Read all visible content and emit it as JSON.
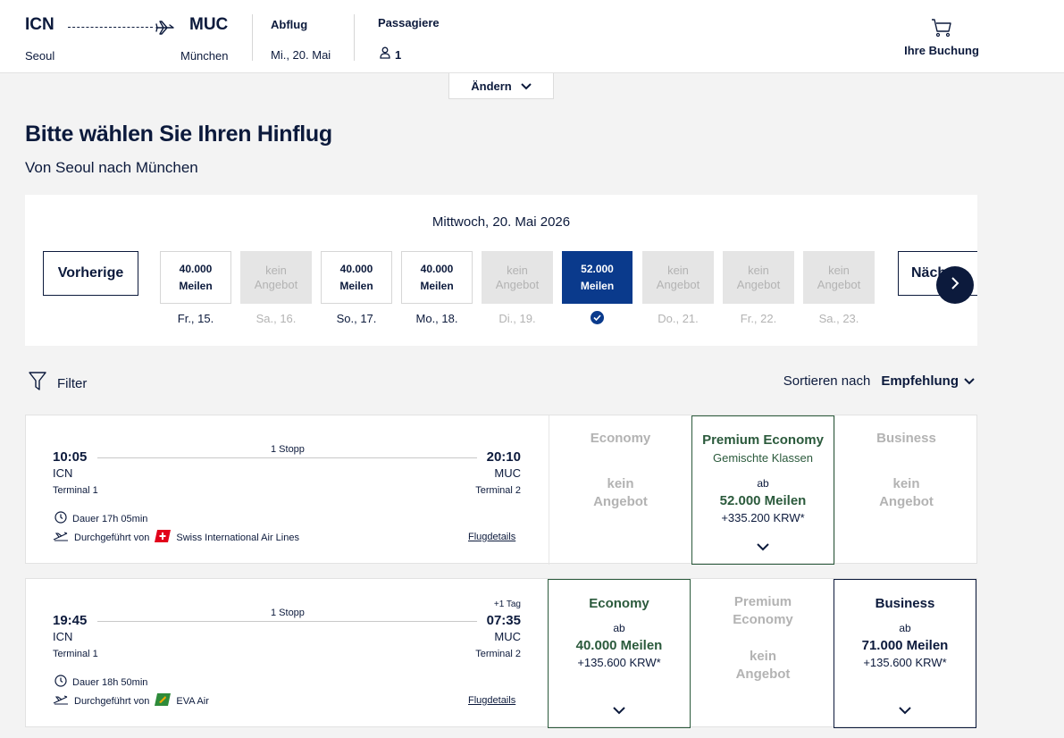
{
  "header": {
    "origin_code": "ICN",
    "origin_city": "Seoul",
    "destination_code": "MUC",
    "destination_city": "München",
    "departure_label": "Abflug",
    "departure_value": "Mi., 20. Mai",
    "passengers_label": "Passagiere",
    "passengers_value": "1",
    "booking_label": "Ihre Buchung"
  },
  "change_button": "Ändern",
  "page_title": "Bitte wählen Sie Ihren Hinflug",
  "page_subtitle": "Von Seoul nach München",
  "date_selector": {
    "current_date": "Mittwoch, 20. Mai 2026",
    "prev_label": "Vorherige",
    "next_label": "Nächste",
    "days": [
      {
        "line1": "40.000",
        "line2": "Meilen",
        "label": "Fr., 15.",
        "state": "available"
      },
      {
        "line1": "kein",
        "line2": "Angebot",
        "label": "Sa., 16.",
        "state": "na"
      },
      {
        "line1": "40.000",
        "line2": "Meilen",
        "label": "So., 17.",
        "state": "available"
      },
      {
        "line1": "40.000",
        "line2": "Meilen",
        "label": "Mo., 18.",
        "state": "available"
      },
      {
        "line1": "kein",
        "line2": "Angebot",
        "label": "Di., 19.",
        "state": "na"
      },
      {
        "line1": "52.000",
        "line2": "Meilen",
        "label": "",
        "state": "selected"
      },
      {
        "line1": "kein",
        "line2": "Angebot",
        "label": "Do., 21.",
        "state": "na"
      },
      {
        "line1": "kein",
        "line2": "Angebot",
        "label": "Fr., 22.",
        "state": "na"
      },
      {
        "line1": "kein",
        "line2": "Angebot",
        "label": "Sa., 23.",
        "state": "na"
      }
    ]
  },
  "filter_label": "Filter",
  "sort": {
    "label": "Sortieren nach",
    "value": "Empfehlung"
  },
  "flights": [
    {
      "dep_time": "10:05",
      "dep_airport": "ICN",
      "dep_terminal": "Terminal 1",
      "arr_time": "20:10",
      "arr_airport": "MUC",
      "arr_terminal": "Terminal 2",
      "day_offset": "",
      "stops": "1 Stopp",
      "duration": "Dauer 17h 05min",
      "operated_by": "Durchgeführt von",
      "airline": "Swiss International Air Lines",
      "details": "Flugdetails",
      "economy": {
        "name": "Economy",
        "kein": "kein",
        "angebot": "Angebot"
      },
      "premium": {
        "name": "Premium Economy",
        "sub": "Gemischte Klassen",
        "ab": "ab",
        "miles": "52.000 Meilen",
        "krw": "+335.200 KRW*"
      },
      "business": {
        "name": "Business",
        "kein": "kein",
        "angebot": "Angebot"
      }
    },
    {
      "dep_time": "19:45",
      "dep_airport": "ICN",
      "dep_terminal": "Terminal 1",
      "arr_time": "07:35",
      "arr_airport": "MUC",
      "arr_terminal": "Terminal 2",
      "day_offset": "+1 Tag",
      "stops": "1 Stopp",
      "duration": "Dauer 18h 50min",
      "operated_by": "Durchgeführt von",
      "airline": "EVA Air",
      "details": "Flugdetails",
      "economy": {
        "name": "Economy",
        "ab": "ab",
        "miles": "40.000 Meilen",
        "krw": "+135.600 KRW*"
      },
      "premium": {
        "name1": "Premium",
        "name2": "Economy",
        "kein": "kein",
        "angebot": "Angebot"
      },
      "business": {
        "name": "Business",
        "ab": "ab",
        "miles": "71.000 Meilen",
        "krw": "+135.600 KRW*"
      }
    }
  ]
}
